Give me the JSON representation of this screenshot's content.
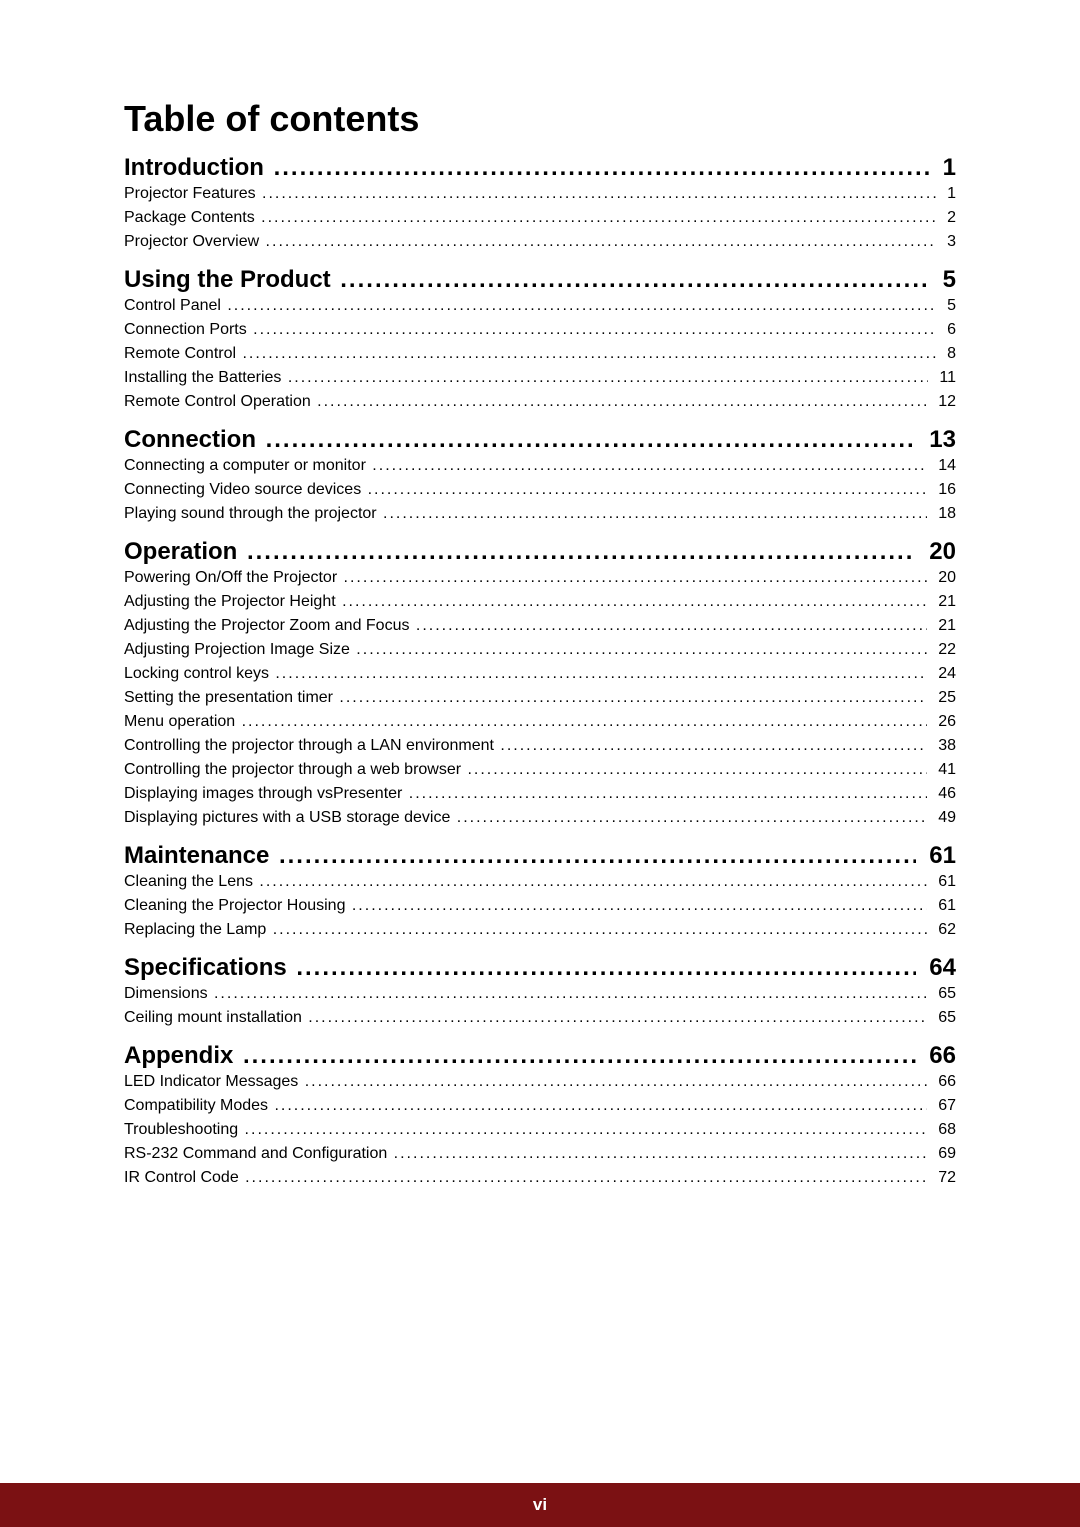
{
  "title": "Table of contents",
  "footer": {
    "bg_color": "#7b1113",
    "text": "vi"
  },
  "sections": [
    {
      "heading": {
        "label": "Introduction",
        "page": "1"
      },
      "items": [
        {
          "label": "Projector Features",
          "page": "1"
        },
        {
          "label": "Package Contents",
          "page": "2"
        },
        {
          "label": "Projector Overview",
          "page": "3"
        }
      ]
    },
    {
      "heading": {
        "label": "Using the Product",
        "page": "5"
      },
      "items": [
        {
          "label": "Control Panel",
          "page": "5"
        },
        {
          "label": "Connection Ports",
          "page": "6"
        },
        {
          "label": "Remote Control",
          "page": "8"
        },
        {
          "label": "Installing the Batteries",
          "page": "11"
        },
        {
          "label": "Remote Control Operation",
          "page": "12"
        }
      ]
    },
    {
      "heading": {
        "label": "Connection",
        "page": "13"
      },
      "items": [
        {
          "label": "Connecting a computer or monitor",
          "page": "14"
        },
        {
          "label": "Connecting Video source devices",
          "page": "16"
        },
        {
          "label": "Playing sound through the projector",
          "page": "18"
        }
      ]
    },
    {
      "heading": {
        "label": "Operation",
        "page": "20"
      },
      "items": [
        {
          "label": "Powering On/Off the Projector",
          "page": "20"
        },
        {
          "label": "Adjusting the Projector Height",
          "page": "21"
        },
        {
          "label": "Adjusting the Projector Zoom and Focus",
          "page": "21"
        },
        {
          "label": "Adjusting Projection Image Size",
          "page": "22"
        },
        {
          "label": "Locking control keys",
          "page": "24"
        },
        {
          "label": "Setting the presentation timer",
          "page": "25"
        },
        {
          "label": "Menu operation",
          "page": "26"
        },
        {
          "label": "Controlling the projector through a LAN environment",
          "page": "38"
        },
        {
          "label": "Controlling the projector through a web browser",
          "page": "41"
        },
        {
          "label": "Displaying images through vsPresenter",
          "page": "46"
        },
        {
          "label": "Displaying pictures with a USB storage device",
          "page": "49"
        }
      ]
    },
    {
      "heading": {
        "label": "Maintenance",
        "page": "61"
      },
      "items": [
        {
          "label": "Cleaning the Lens",
          "page": "61"
        },
        {
          "label": "Cleaning the Projector Housing",
          "page": "61"
        },
        {
          "label": "Replacing the Lamp",
          "page": "62"
        }
      ]
    },
    {
      "heading": {
        "label": "Specifications",
        "page": "64"
      },
      "items": [
        {
          "label": "Dimensions",
          "page": "65"
        },
        {
          "label": "Ceiling mount installation",
          "page": "65"
        }
      ]
    },
    {
      "heading": {
        "label": "Appendix",
        "page": "66"
      },
      "items": [
        {
          "label": "LED Indicator Messages",
          "page": "66"
        },
        {
          "label": "Compatibility Modes",
          "page": "67"
        },
        {
          "label": "Troubleshooting",
          "page": "68"
        },
        {
          "label": "RS-232 Command and Configuration",
          "page": "69"
        },
        {
          "label": "IR Control Code",
          "page": "72"
        }
      ]
    }
  ]
}
